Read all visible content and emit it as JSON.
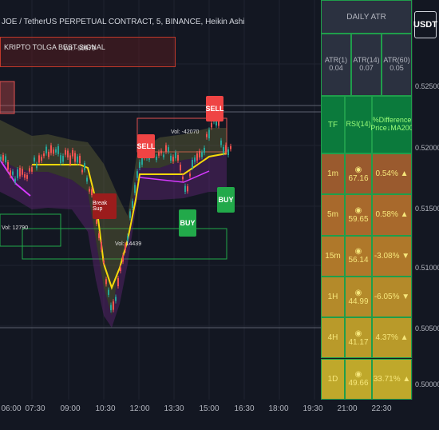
{
  "header": {
    "symbol_title": "JOE / TetherUS PERPETUAL CONTRACT, 5, BINANCE, Heikin Ashi",
    "indicator_name": "KRIPTO TOLGA BEST SIGNAL",
    "indicator_vol": "Vol: -50979"
  },
  "price_axis": {
    "currency_button": "USDT",
    "labels": [
      "0.52500",
      "0.52000",
      "0.51500",
      "0.51000",
      "0.50500",
      "0.50000"
    ]
  },
  "time_axis": {
    "labels": [
      "06:00",
      "07:30",
      "09:00",
      "10:30",
      "12:00",
      "13:30",
      "15:00",
      "16:30",
      "18:00",
      "19:30",
      "21:00",
      "22:30"
    ]
  },
  "signals": {
    "sell_1": "SELL",
    "sell_2": "SELL",
    "buy_1": "BUY",
    "buy_2": "BUY",
    "break_sup": "Break Sup"
  },
  "volume_labels": {
    "v1": "Vol: -42070",
    "v2": "Vol: 14439",
    "v3": "Vol: 12790"
  },
  "atr_table": {
    "header": "DAILY   ATR",
    "atr_cols": [
      {
        "label": "ATR(1)",
        "value": "0.04"
      },
      {
        "label": "ATR(14)",
        "value": "0.07"
      },
      {
        "label": "ATR(60)",
        "value": "0.05"
      }
    ],
    "col_headers": {
      "tf": "TF",
      "rsi": "RSI(14)",
      "diff": "%Difference Price↓MA200"
    },
    "rows": [
      {
        "tf": "1m",
        "rsi": "◉ 67.16",
        "diff": "0.54% ▲",
        "color": "#9a5a2e"
      },
      {
        "tf": "5m",
        "rsi": "◉ 59.65",
        "diff": "0.58% ▲",
        "color": "#a8692c"
      },
      {
        "tf": "15m",
        "rsi": "◉ 56.14",
        "diff": "-3.08% ▼",
        "color": "#af782a"
      },
      {
        "tf": "1H",
        "rsi": "◉ 44.99",
        "diff": "-6.05% ▼",
        "color": "#b48a2a"
      },
      {
        "tf": "4H",
        "rsi": "◉ 41.17",
        "diff": "4.37% ▲",
        "color": "#b99a2a"
      },
      {
        "tf": "1D",
        "rsi": "◉ 49.66",
        "diff": "33.71% ▲",
        "color": "#bfa82b"
      }
    ]
  },
  "colors": {
    "sell": "#ef4444",
    "buy": "#22a94a",
    "break": "#9b1c1c",
    "table_border": "#1f9e4b",
    "table_header_bg": "#0b7a3c"
  }
}
